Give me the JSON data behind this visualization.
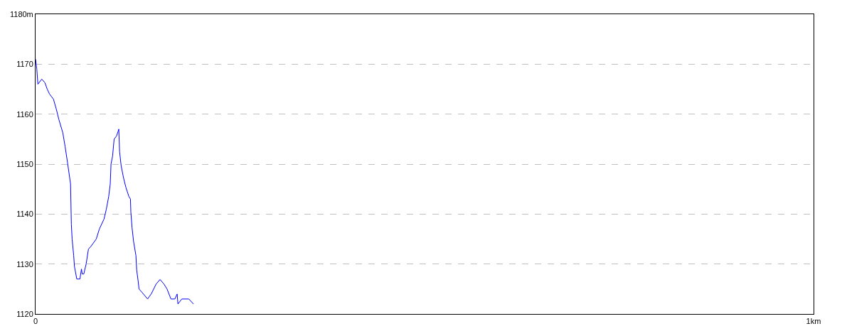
{
  "chart_data": {
    "type": "line",
    "color": "#0000ff",
    "x": [
      0,
      0.0016,
      0.003,
      0.008,
      0.012,
      0.015,
      0.018,
      0.023,
      0.027,
      0.03,
      0.035,
      0.038,
      0.041,
      0.045,
      0.046,
      0.047,
      0.049,
      0.05,
      0.053,
      0.057,
      0.059,
      0.06,
      0.062,
      0.065,
      0.068,
      0.071,
      0.078,
      0.082,
      0.088,
      0.091,
      0.094,
      0.096,
      0.097,
      0.099,
      0.101,
      0.104,
      0.106,
      0.107,
      0.108,
      0.11,
      0.113,
      0.116,
      0.12,
      0.122,
      0.1225,
      0.124,
      0.126,
      0.129,
      0.13,
      0.132,
      0.133,
      0.137,
      0.144,
      0.149,
      0.155,
      0.16,
      0.165,
      0.169,
      0.174,
      0.179,
      0.182,
      0.183,
      0.188,
      0.197,
      0.203
    ],
    "values": [
      1171,
      1169,
      1166,
      1167,
      1166.3,
      1165,
      1164,
      1163,
      1160.8,
      1158.9,
      1156.3,
      1153.5,
      1150.4,
      1146,
      1138,
      1135,
      1131.7,
      1129.5,
      1127,
      1127,
      1129,
      1128,
      1128,
      1130,
      1133,
      1133.5,
      1135,
      1137,
      1139,
      1141,
      1143.5,
      1146,
      1150,
      1151.6,
      1155,
      1155.6,
      1156.5,
      1157,
      1152.5,
      1149.7,
      1147.3,
      1145.4,
      1143.5,
      1143,
      1140.4,
      1137.3,
      1134.5,
      1131.7,
      1128.8,
      1126.4,
      1125,
      1124.3,
      1123,
      1124.1,
      1126,
      1126.9,
      1126,
      1125,
      1123,
      1123,
      1124,
      1122,
      1123,
      1123,
      1122
    ],
    "xlim": [
      0,
      1
    ],
    "xticks": [
      0,
      {
        "value": 1,
        "label": "1km"
      }
    ],
    "ylim": [
      1120,
      1180
    ],
    "yticks": [
      1120,
      1130,
      1140,
      1150,
      1160,
      1170,
      {
        "value": 1180,
        "label": "1180m"
      }
    ],
    "grid": "y"
  }
}
